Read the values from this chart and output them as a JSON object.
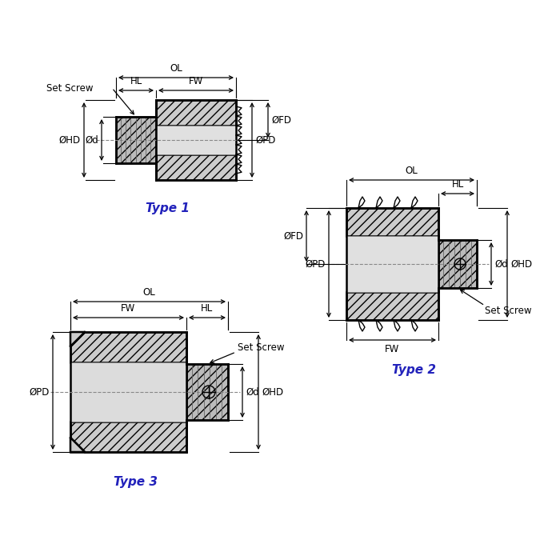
{
  "bg_color": "#ffffff",
  "line_color": "#000000",
  "label_color": "#2222bb",
  "type1_label": "Type 1",
  "type2_label": "Type 2",
  "type3_label": "Type 3",
  "font_size_dim": 8.5,
  "font_size_type": 11,
  "figsize": [
    6.7,
    6.7
  ],
  "dpi": 100,
  "hatch_gray": "#c8c8c8",
  "mid_gray": "#e0e0e0"
}
